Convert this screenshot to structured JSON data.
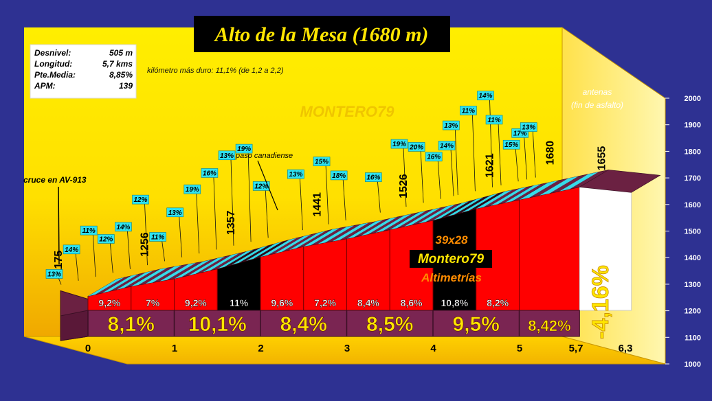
{
  "chart_data": {
    "type": "area",
    "title": "Alto de la Mesa (1680 m)",
    "ylim": [
      1000,
      2000
    ],
    "y_ticks": [
      "1000",
      "1100",
      "1200",
      "1300",
      "1400",
      "1500",
      "1600",
      "1700",
      "1800",
      "1900",
      "2000"
    ],
    "x_ticks": [
      {
        "x": 0,
        "label": "0"
      },
      {
        "x": 1,
        "label": "1"
      },
      {
        "x": 2,
        "label": "2"
      },
      {
        "x": 3,
        "label": "3"
      },
      {
        "x": 4,
        "label": "4"
      },
      {
        "x": 5,
        "label": "5"
      },
      {
        "x": 5.7,
        "label": "5,7"
      },
      {
        "x": 6.3,
        "label": "6,3"
      }
    ],
    "stats": [
      {
        "label": "Desnivel:",
        "value": "505 m"
      },
      {
        "label": "Longitud:",
        "value": "5,7 kms"
      },
      {
        "label": "Pte.Media:",
        "value": "8,85%"
      },
      {
        "label": "APM:",
        "value": "139"
      }
    ],
    "hardest_km": "kilómetro más duro: 11,1% (de 1,2 a 2,2)",
    "segments": [
      {
        "x0": 0,
        "x1": 0.5,
        "y0": 1175,
        "y1": 1221,
        "pct": "9,2%",
        "color": "#ff0000"
      },
      {
        "x0": 0.5,
        "x1": 1,
        "y0": 1221,
        "y1": 1256,
        "pct": "7%",
        "color": "#ff0000"
      },
      {
        "x0": 1,
        "x1": 1.5,
        "y0": 1256,
        "y1": 1302,
        "pct": "9,2%",
        "color": "#ff0000"
      },
      {
        "x0": 1.5,
        "x1": 2,
        "y0": 1302,
        "y1": 1357,
        "pct": "11%",
        "color": "#000000"
      },
      {
        "x0": 2,
        "x1": 2.5,
        "y0": 1357,
        "y1": 1405,
        "pct": "9,6%",
        "color": "#ff0000"
      },
      {
        "x0": 2.5,
        "x1": 3,
        "y0": 1405,
        "y1": 1441,
        "pct": "7,2%",
        "color": "#ff0000"
      },
      {
        "x0": 3,
        "x1": 3.5,
        "y0": 1441,
        "y1": 1483,
        "pct": "8,4%",
        "color": "#ff0000"
      },
      {
        "x0": 3.5,
        "x1": 4,
        "y0": 1483,
        "y1": 1526,
        "pct": "8,6%",
        "color": "#ff0000"
      },
      {
        "x0": 4,
        "x1": 4.5,
        "y0": 1526,
        "y1": 1580,
        "pct": "10,8%",
        "color": "#000000"
      },
      {
        "x0": 4.5,
        "x1": 5,
        "y0": 1580,
        "y1": 1621,
        "pct": "8,2%",
        "color": "#ff0000"
      },
      {
        "x0": 5,
        "x1": 5.7,
        "y0": 1621,
        "y1": 1680,
        "pct": "",
        "color": "#ff0000"
      },
      {
        "x0": 5.7,
        "x1": 6.3,
        "y0": 1680,
        "y1": 1655,
        "pct": "",
        "color": "#ffffff"
      }
    ],
    "km_averages": [
      {
        "x0": 0,
        "x1": 1,
        "label": "8,1%"
      },
      {
        "x0": 1,
        "x1": 2,
        "label": "10,1%"
      },
      {
        "x0": 2,
        "x1": 3,
        "label": "8,4%"
      },
      {
        "x0": 3,
        "x1": 4,
        "label": "8,5%"
      },
      {
        "x0": 4,
        "x1": 5,
        "label": "9,5%"
      },
      {
        "x0": 5,
        "x1": 5.7,
        "label": "8,42%"
      }
    ],
    "descent_label": "-4,16%",
    "altitude_labels": [
      {
        "x": 0,
        "y": 1175,
        "label": "1175"
      },
      {
        "x": 1,
        "y": 1256,
        "label": "1256"
      },
      {
        "x": 2,
        "y": 1357,
        "label": "1357"
      },
      {
        "x": 3,
        "y": 1441,
        "label": "1441"
      },
      {
        "x": 4,
        "y": 1526,
        "label": "1526"
      },
      {
        "x": 5,
        "y": 1621,
        "label": "1621"
      },
      {
        "x": 5.7,
        "y": 1680,
        "label": "1680"
      },
      {
        "x": 6.3,
        "y": 1655,
        "label": "1655"
      }
    ],
    "gradient_tags": [
      {
        "x": 0.0,
        "d": 0.4,
        "label": "13%"
      },
      {
        "x": 0.2,
        "d": 1.15,
        "label": "14%"
      },
      {
        "x": 0.4,
        "d": 1.7,
        "label": "11%"
      },
      {
        "x": 0.6,
        "d": 1.25,
        "label": "12%"
      },
      {
        "x": 0.8,
        "d": 1.55,
        "label": "14%"
      },
      {
        "x": 1.0,
        "d": 2.4,
        "label": "12%"
      },
      {
        "x": 1.2,
        "d": 0.9,
        "label": "11%"
      },
      {
        "x": 1.4,
        "d": 1.65,
        "label": "13%"
      },
      {
        "x": 1.6,
        "d": 2.35,
        "label": "19%"
      },
      {
        "x": 1.8,
        "d": 2.8,
        "label": "16%"
      },
      {
        "x": 2.0,
        "d": 3.3,
        "label": "13%"
      },
      {
        "x": 2.2,
        "d": 3.4,
        "label": "19%"
      },
      {
        "x": 2.4,
        "d": 1.9,
        "label": "12%"
      },
      {
        "x": 2.8,
        "d": 2.05,
        "label": "13%"
      },
      {
        "x": 3.1,
        "d": 2.3,
        "label": "15%"
      },
      {
        "x": 3.3,
        "d": 1.65,
        "label": "18%"
      },
      {
        "x": 3.7,
        "d": 1.3,
        "label": "16%"
      },
      {
        "x": 4.0,
        "d": 2.3,
        "label": "19%"
      },
      {
        "x": 4.2,
        "d": 2.05,
        "label": "20%"
      },
      {
        "x": 4.4,
        "d": 1.55,
        "label": "16%"
      },
      {
        "x": 4.55,
        "d": 1.85,
        "label": "14%"
      },
      {
        "x": 4.6,
        "d": 2.55,
        "label": "13%"
      },
      {
        "x": 4.8,
        "d": 2.95,
        "label": "11%"
      },
      {
        "x": 5.0,
        "d": 3.35,
        "label": "14%"
      },
      {
        "x": 5.1,
        "d": 2.4,
        "label": "11%"
      },
      {
        "x": 5.3,
        "d": 1.35,
        "label": "15%"
      },
      {
        "x": 5.4,
        "d": 1.7,
        "label": "17%"
      },
      {
        "x": 5.5,
        "d": 1.85,
        "label": "13%"
      }
    ],
    "annotations": [
      {
        "x": 0,
        "y": 1470,
        "label": "cruce en AV-913"
      },
      {
        "x": 2.5,
        "y": 1570,
        "label": "paso canadiense"
      },
      {
        "x": 6.1,
        "y": 1880,
        "label": "antenas"
      },
      {
        "x": 6.1,
        "y": 1840,
        "label": "(fin de asfalto)"
      }
    ],
    "credits": {
      "line1": "39x28",
      "line2": "Montero79",
      "line3": "Altimetrías",
      "watermark": "MONTERO79"
    },
    "colors": {
      "background": "#2e3192",
      "panel": "#ffea00",
      "title_bg": "#000000",
      "title_text": "#ffe600",
      "road_stripe": "#33e6f2",
      "road_dark": "#6b2142",
      "km_band": "#7a2552",
      "km_text": "#ffe600",
      "climb_fill": "#ff0000",
      "hard_fill": "#000000",
      "descent_fill": "#ffffff"
    }
  }
}
